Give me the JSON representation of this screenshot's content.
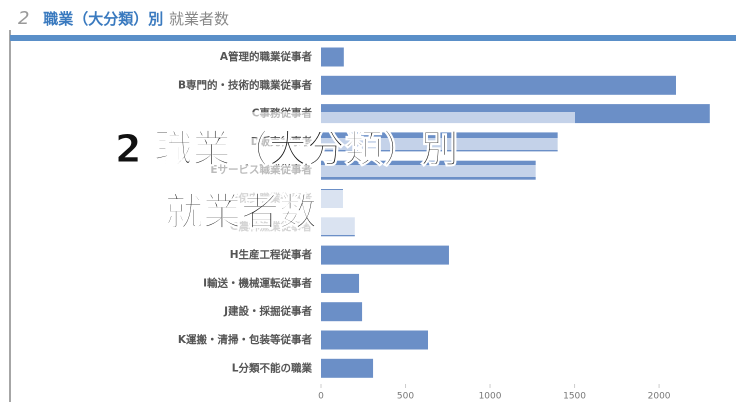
{
  "header": {
    "number": "2",
    "emphasis": "職業（大分類）別",
    "rest": "就業者数"
  },
  "overlay": {
    "line1": "2 職業（大分類）別",
    "line2": "就業者数"
  },
  "chart_data": {
    "type": "barh",
    "color": "#6b8fc7",
    "categories": [
      "A管理的職業従事者",
      "B専門的・技術的職業従事者",
      "C事務従事者",
      "D販売従事者",
      "Eサービス職業従事者",
      "F保安職業従事者",
      "G農林漁業従事者",
      "H生産工程従事者",
      "I輸送・機械運転従事者",
      "J建設・採掘従事者",
      "K運搬・清掃・包装等従事者",
      "L分類不能の職業"
    ],
    "values": [
      135,
      2100,
      2300,
      1400,
      1270,
      130,
      200,
      757,
      225,
      243,
      633,
      308
    ],
    "xlim": [
      0,
      2455
    ],
    "xticks": [
      0,
      500,
      1000,
      1500,
      2000
    ]
  }
}
